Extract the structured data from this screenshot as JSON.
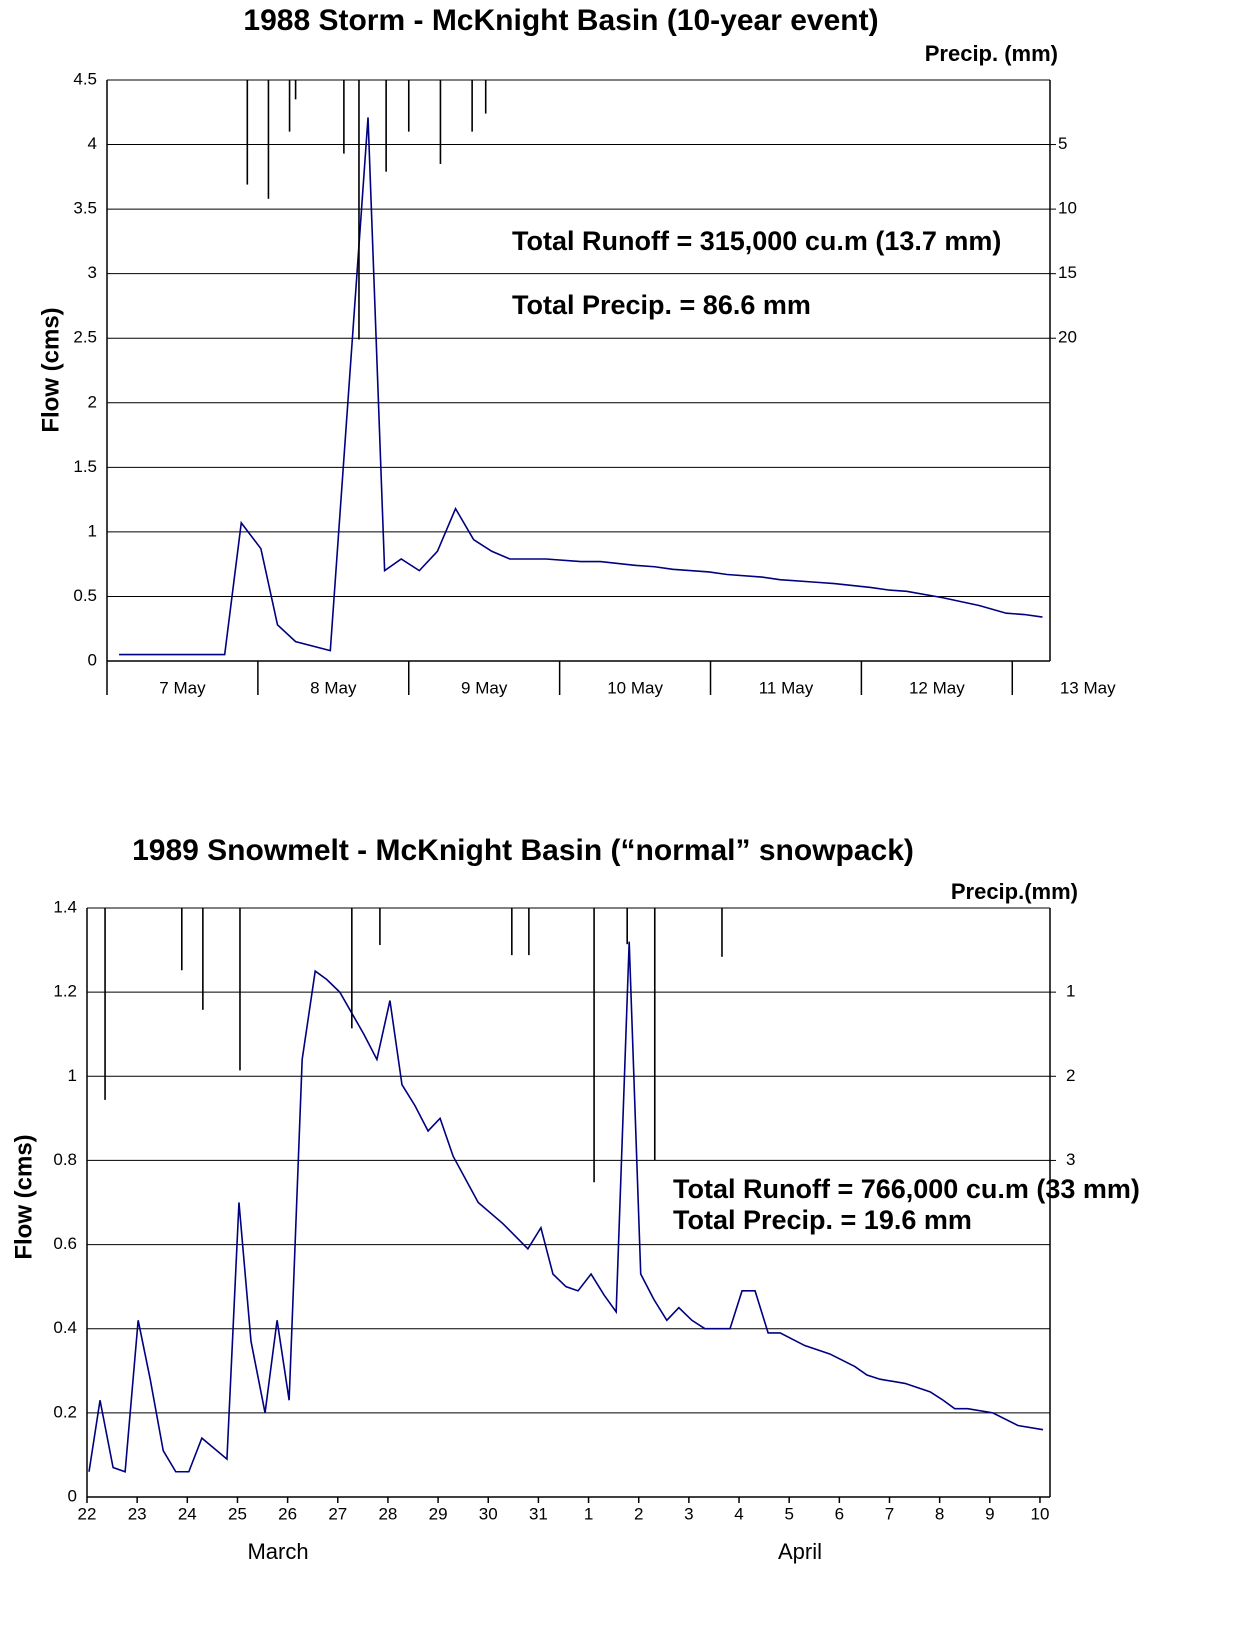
{
  "chart_data": [
    {
      "type": "line",
      "title": "1988 Storm - McKnight Basin (10-year event)",
      "y_label": "Flow (cms)",
      "y2_label": "Precip. (mm)",
      "xlim": [
        7,
        13.25
      ],
      "xticks": [
        {
          "value": 7,
          "label": "7 May"
        },
        {
          "value": 8,
          "label": "8 May"
        },
        {
          "value": 9,
          "label": "9 May"
        },
        {
          "value": 10,
          "label": "10 May"
        },
        {
          "value": 11,
          "label": "11 May"
        },
        {
          "value": 12,
          "label": "12 May"
        },
        {
          "value": 13,
          "label": "13 May"
        }
      ],
      "ylim": [
        0,
        4.5
      ],
      "yticks": [
        0,
        0.5,
        1,
        1.5,
        2,
        2.5,
        3,
        3.5,
        4,
        4.5
      ],
      "y2lim": [
        45,
        0
      ],
      "y2ticks": [
        5,
        10,
        15,
        20
      ],
      "grid": true,
      "series": [
        {
          "color": "#000080",
          "x": [
            7.08,
            7.78,
            7.89,
            8.02,
            8.13,
            8.25,
            8.48,
            8.73,
            8.84,
            8.95,
            9.07,
            9.19,
            9.31,
            9.43,
            9.55,
            9.67,
            9.91,
            10.14,
            10.27,
            10.51,
            10.63,
            10.75,
            10.99,
            11.11,
            11.34,
            11.46,
            11.7,
            11.82,
            12.06,
            12.18,
            12.3,
            12.54,
            12.66,
            12.78,
            12.96,
            13.08,
            13.2
          ],
          "values": [
            0.05,
            0.05,
            1.07,
            0.87,
            0.28,
            0.15,
            0.08,
            4.21,
            0.7,
            0.79,
            0.7,
            0.85,
            1.18,
            0.94,
            0.85,
            0.79,
            0.79,
            0.77,
            0.77,
            0.74,
            0.73,
            0.71,
            0.69,
            0.67,
            0.65,
            0.63,
            0.61,
            0.6,
            0.57,
            0.55,
            0.54,
            0.49,
            0.46,
            0.43,
            0.37,
            0.36,
            0.34
          ]
        },
        {
          "type": "bar",
          "axis": "y2",
          "color": "#000000",
          "x": [
            7.93,
            8.07,
            8.21,
            8.25,
            8.57,
            8.67,
            8.85,
            9.0,
            9.21,
            9.42,
            9.51
          ],
          "values": [
            8.1,
            9.2,
            4.0,
            1.5,
            5.7,
            20.1,
            7.1,
            4.0,
            6.5,
            4.0,
            2.6
          ]
        }
      ],
      "annotations": [
        "Total Runoff = 315,000 cu.m (13.7 mm)",
        "Total Precip. = 86.6 mm"
      ]
    },
    {
      "type": "line",
      "title": "1989 Snowmelt - McKnight Basin (“normal” snowpack)",
      "y_label": "Flow (cms)",
      "y2_label": "Precip.(mm)",
      "xlim": [
        22,
        41.2
      ],
      "xticks": [
        22,
        23,
        24,
        25,
        26,
        27,
        28,
        29,
        30,
        31,
        {
          "value": 32,
          "label": "1"
        },
        {
          "value": 33,
          "label": "2"
        },
        {
          "value": 34,
          "label": "3"
        },
        {
          "value": 35,
          "label": "4"
        },
        {
          "value": 36,
          "label": "5"
        },
        {
          "value": 37,
          "label": "6"
        },
        {
          "value": 38,
          "label": "7"
        },
        {
          "value": 39,
          "label": "8"
        },
        {
          "value": 40,
          "label": "9"
        },
        {
          "value": 41,
          "label": "10"
        }
      ],
      "month_labels": [
        "March",
        "April"
      ],
      "ylim": [
        0,
        1.4
      ],
      "yticks": [
        0,
        0.2,
        0.4,
        0.6,
        0.8,
        1,
        1.2,
        1.4
      ],
      "y2lim": [
        7,
        0
      ],
      "y2ticks": [
        1,
        2,
        3
      ],
      "grid": true,
      "series": [
        {
          "color": "#000080",
          "x": [
            22.04,
            22.26,
            22.52,
            22.76,
            23.02,
            23.26,
            23.52,
            23.77,
            24.03,
            24.29,
            24.79,
            25.03,
            25.27,
            25.55,
            25.79,
            26.03,
            26.29,
            26.55,
            26.78,
            27.04,
            27.52,
            27.78,
            28.04,
            28.28,
            28.54,
            28.8,
            29.04,
            29.3,
            29.8,
            30.29,
            30.79,
            31.05,
            31.29,
            31.55,
            31.79,
            32.05,
            32.31,
            32.55,
            32.81,
            33.04,
            33.3,
            33.56,
            33.8,
            34.06,
            34.32,
            34.82,
            35.06,
            35.32,
            35.58,
            35.82,
            36.31,
            36.81,
            37.31,
            37.55,
            37.81,
            38.31,
            38.81,
            39.07,
            39.3,
            39.56,
            40.06,
            40.56,
            41.06
          ],
          "values": [
            0.06,
            0.23,
            0.07,
            0.06,
            0.42,
            0.28,
            0.11,
            0.06,
            0.06,
            0.14,
            0.09,
            0.7,
            0.37,
            0.2,
            0.42,
            0.23,
            1.04,
            1.25,
            1.23,
            1.2,
            1.1,
            1.04,
            1.18,
            0.98,
            0.93,
            0.87,
            0.9,
            0.81,
            0.7,
            0.65,
            0.59,
            0.64,
            0.53,
            0.5,
            0.49,
            0.53,
            0.48,
            0.44,
            1.32,
            0.53,
            0.47,
            0.42,
            0.45,
            0.42,
            0.4,
            0.4,
            0.49,
            0.49,
            0.39,
            0.39,
            0.36,
            0.34,
            0.31,
            0.29,
            0.28,
            0.27,
            0.25,
            0.23,
            0.21,
            0.21,
            0.2,
            0.17,
            0.16
          ]
        },
        {
          "type": "bar",
          "axis": "y2",
          "color": "#000000",
          "x": [
            22.36,
            23.89,
            24.31,
            25.05,
            27.28,
            27.84,
            30.47,
            30.81,
            32.11,
            32.77,
            33.32,
            34.66
          ],
          "values": [
            2.28,
            0.74,
            1.21,
            1.93,
            1.43,
            0.44,
            0.56,
            0.56,
            3.26,
            0.43,
            3.0,
            0.58
          ]
        }
      ],
      "annotations": [
        "Total Runoff = 766,000 cu.m (33 mm)",
        "Total Precip. = 19.6 mm"
      ]
    }
  ]
}
